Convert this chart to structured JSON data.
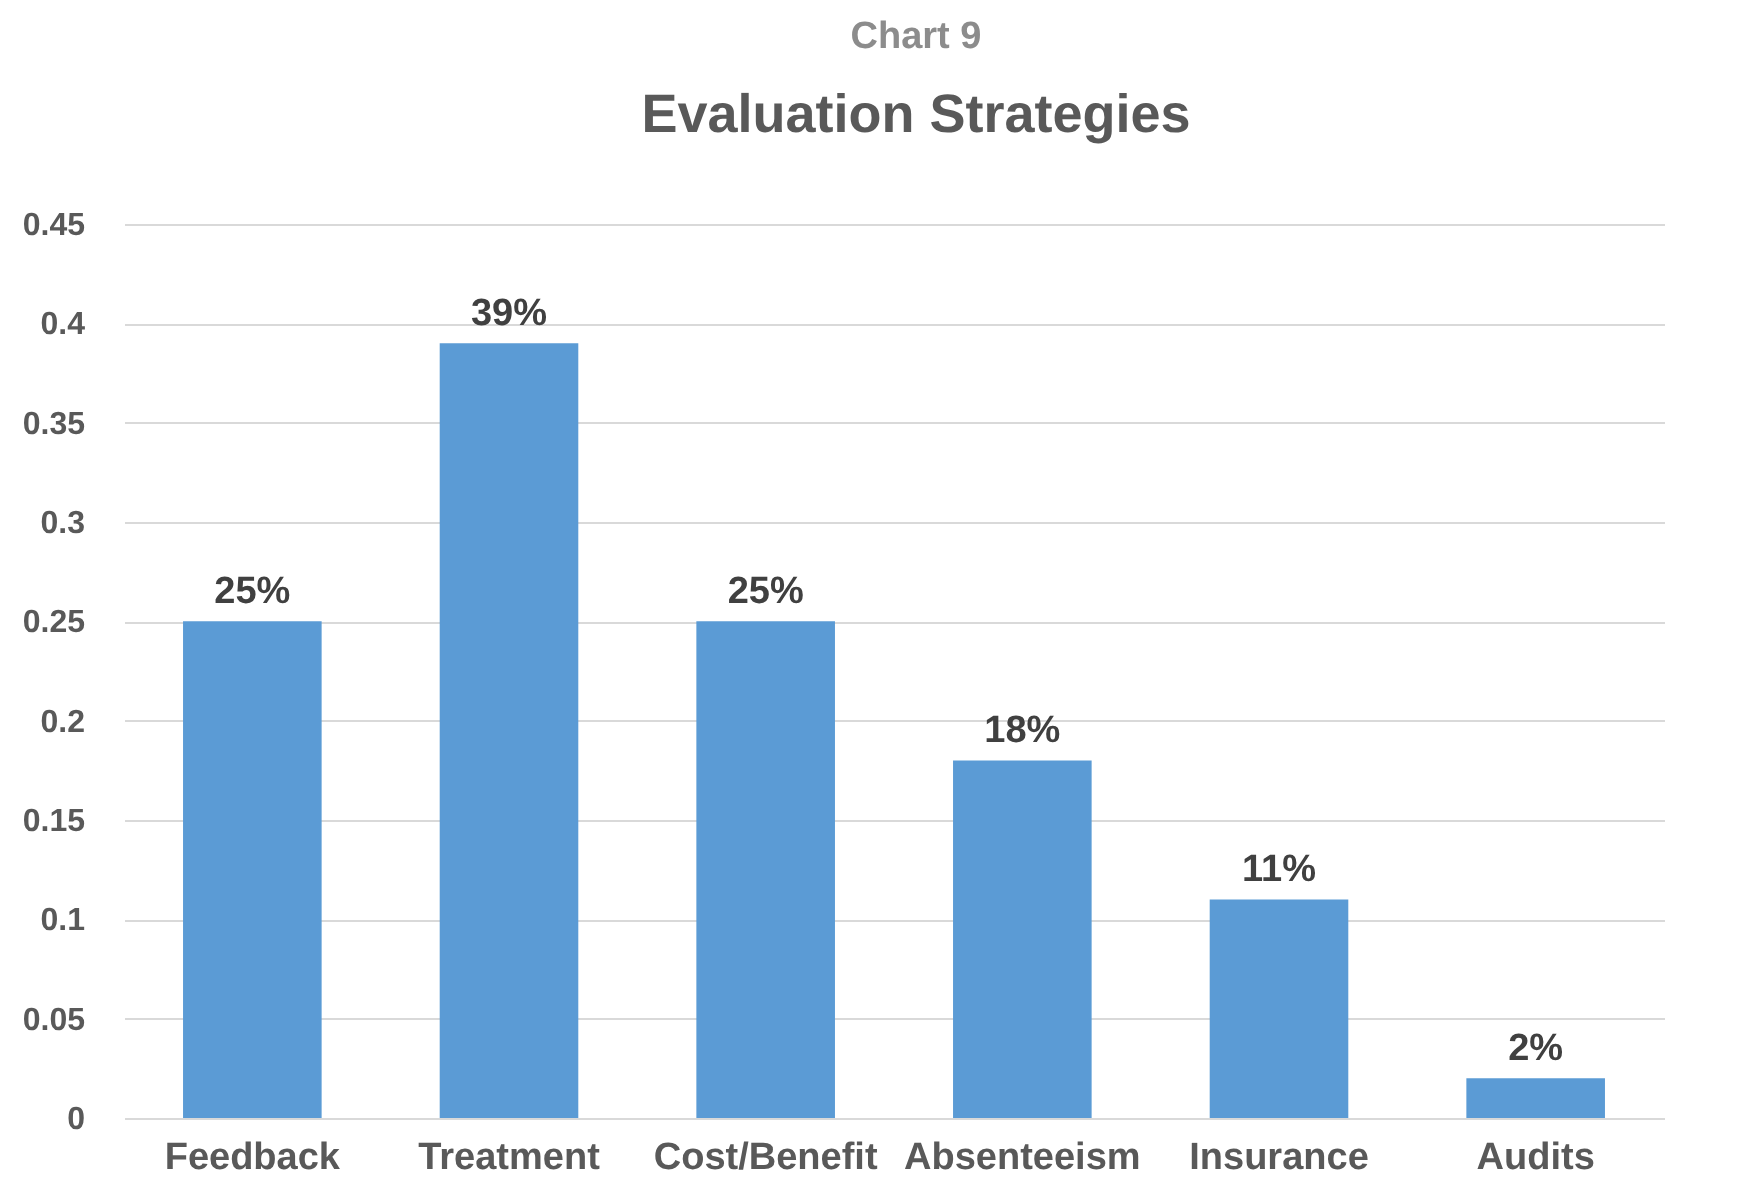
{
  "chart_data": {
    "type": "bar",
    "subtitle": "Chart 9",
    "title": "Evaluation Strategies",
    "categories": [
      "Feedback",
      "Treatment",
      "Cost/Benefit",
      "Absenteeism",
      "Insurance",
      "Audits"
    ],
    "values": [
      0.25,
      0.39,
      0.25,
      0.18,
      0.11,
      0.02
    ],
    "value_labels": [
      "25%",
      "39%",
      "25%",
      "18%",
      "11%",
      "2%"
    ],
    "color": "#5b9bd5",
    "ylim": [
      0,
      0.45
    ],
    "yticks": [
      0,
      0.05,
      0.1,
      0.15,
      0.2,
      0.25,
      0.3,
      0.35,
      0.4,
      0.45
    ],
    "grid": "y"
  }
}
